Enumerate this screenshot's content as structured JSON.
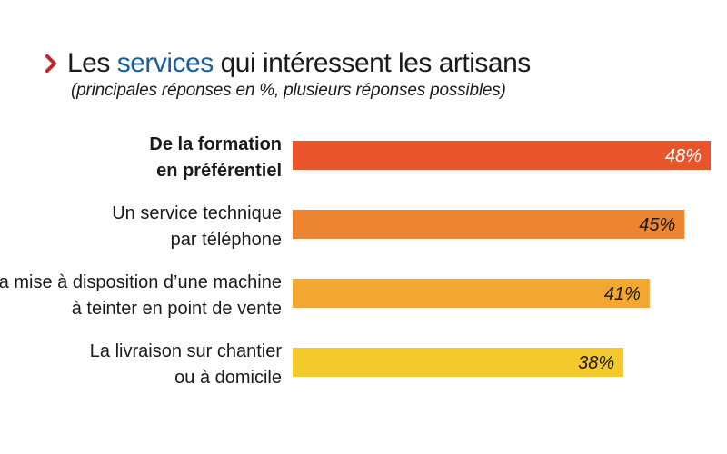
{
  "header": {
    "title_before": "Les ",
    "title_highlight": "services",
    "title_after": " qui intéressent les artisans",
    "subtitle": "(principales réponses en %, plusieurs réponses possibles)"
  },
  "colors": {
    "title_highlight": "#1b5e9e",
    "chevron": "#c0292e",
    "text": "#1a1a1a"
  },
  "chart_data": {
    "type": "bar",
    "orientation": "horizontal",
    "title": "Les services qui intéressent les artisans",
    "subtitle": "(principales réponses en %, plusieurs réponses possibles)",
    "xlim": [
      0,
      48
    ],
    "unit": "%",
    "grid": false,
    "legend": "none",
    "categories": [
      {
        "line1": "De la formation",
        "line2": "en préférentiel",
        "bold": true
      },
      {
        "line1": "Un service technique",
        "line2": "par téléphone",
        "bold": false
      },
      {
        "line1": "La mise à disposition d’une machine",
        "line2": "à teinter en point de vente",
        "bold": false
      },
      {
        "line1": "La livraison sur chantier",
        "line2": "ou à domicile",
        "bold": false
      }
    ],
    "values": [
      48,
      45,
      41,
      38
    ],
    "value_labels": [
      "48%",
      "45%",
      "41%",
      "38%"
    ],
    "bar_colors": [
      "#e8542b",
      "#ed8430",
      "#f1a730",
      "#f4c92c"
    ],
    "value_label_colors": [
      "#ffffff",
      "#1a1a1a",
      "#1a1a1a",
      "#1a1a1a"
    ]
  }
}
